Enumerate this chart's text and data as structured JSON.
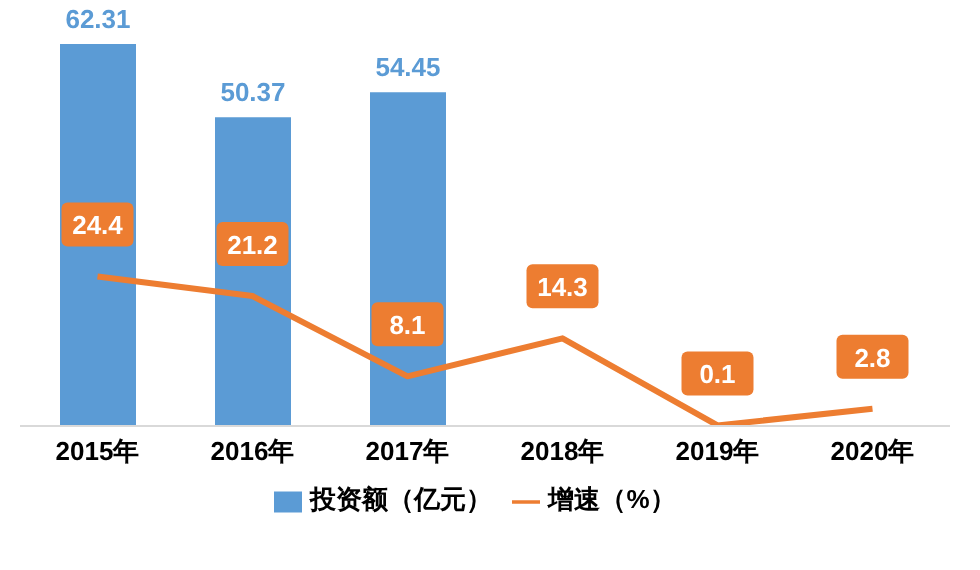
{
  "chart_data": {
    "type": "bar",
    "categories": [
      "2015年",
      "2016年",
      "2017年",
      "2018年",
      "2019年",
      "2020年"
    ],
    "series": [
      {
        "name": "投资额（亿元）",
        "color": "#5b9bd5",
        "values": [
          62.31,
          50.37,
          54.45,
          null,
          null,
          null
        ]
      },
      {
        "name": "增速（%）",
        "type": "line",
        "color": "#ed7d31",
        "values": [
          24.4,
          21.2,
          8.1,
          14.3,
          0.1,
          2.8
        ]
      }
    ],
    "tick_labels": "x",
    "grid": false,
    "legend": "bottom",
    "data_labels": true,
    "marker": "none",
    "line_style": "solid"
  }
}
